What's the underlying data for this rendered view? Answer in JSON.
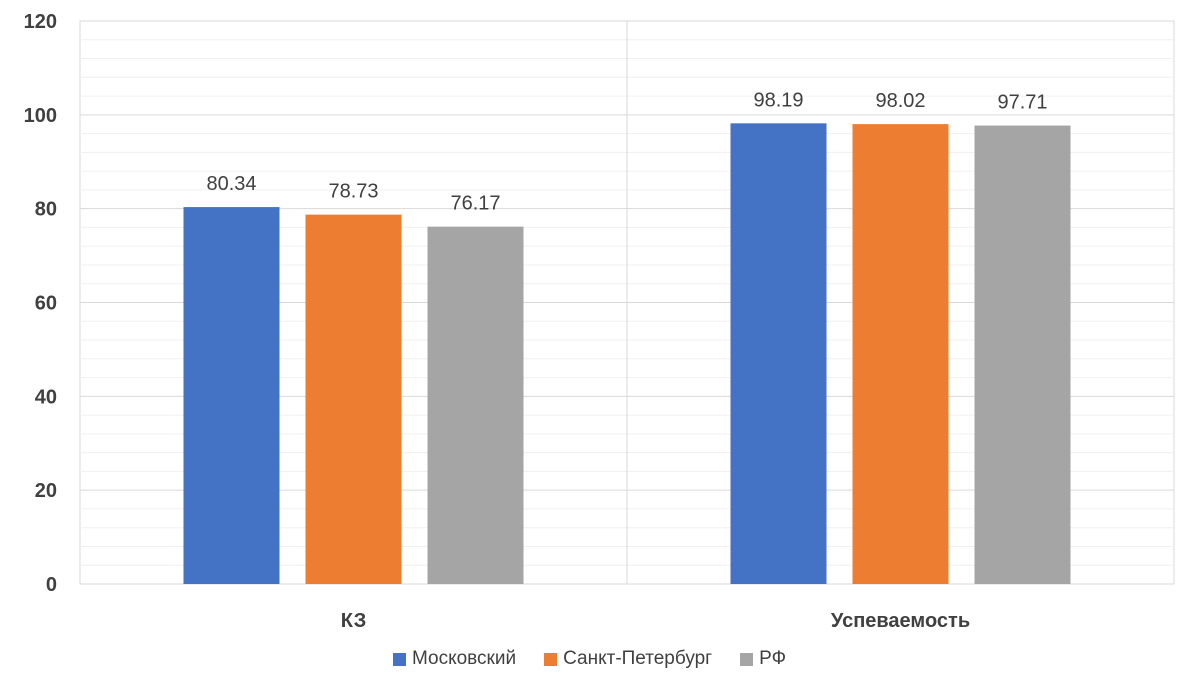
{
  "chart_data": {
    "type": "bar",
    "categories": [
      "КЗ",
      "Успеваемость"
    ],
    "series": [
      {
        "name": "Московский",
        "values": [
          80.34,
          98.19
        ],
        "color": "#4472C4"
      },
      {
        "name": "Санкт-Петербург",
        "values": [
          78.73,
          98.02
        ],
        "color": "#ED7D31"
      },
      {
        "name": "РФ",
        "values": [
          76.17,
          97.71
        ],
        "color": "#A5A5A5"
      }
    ],
    "ylim": [
      0,
      120
    ],
    "y_ticks": [
      "0",
      "20",
      "40",
      "60",
      "80",
      "100",
      "120"
    ],
    "data_labels": [
      [
        "80.34",
        "98.19"
      ],
      [
        "78.73",
        "98.02"
      ],
      [
        "76.17",
        "97.71"
      ]
    ],
    "grid": true,
    "legend_position": "bottom",
    "title": "",
    "xlabel": "",
    "ylabel": ""
  }
}
